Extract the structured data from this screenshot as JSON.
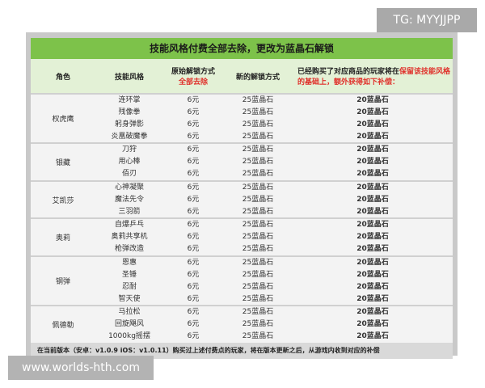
{
  "watermark_top": "TG: MYYJJPP",
  "watermark_bottom": "www.worlds-hth.com",
  "table": {
    "title": "技能风格付费全部去除，更改为蓝晶石解锁",
    "headers": {
      "role": "角色",
      "skill": "技能风格",
      "orig": "原始解锁方式",
      "orig_note": "全部去除",
      "new": "新的解锁方式",
      "comp_a": "已经购买了对应商品的玩家将在",
      "comp_b": "保留该技能风格的基础上，额外获得如下补偿："
    },
    "groups": [
      {
        "role": "权虎鹰",
        "skills": [
          "连环掌",
          "残像拳",
          "躬身弹影",
          "炎凰破魔拳"
        ]
      },
      {
        "role": "银藏",
        "skills": [
          "刀狩",
          "用心棒",
          "佰刃"
        ]
      },
      {
        "role": "艾凯莎",
        "skills": [
          "心神凝聚",
          "魔法先令",
          "三羽箭"
        ]
      },
      {
        "role": "奥莉",
        "skills": [
          "自爆乒乓",
          "奥莉共享机",
          "枪弹改造"
        ]
      },
      {
        "role": "钢弹",
        "skills": [
          "恩惠",
          "圣锤",
          "忍耐",
          "智天使"
        ]
      },
      {
        "role": "佩德勒",
        "skills": [
          "马拉松",
          "回旋飓风",
          "1000kg摇摆"
        ]
      }
    ],
    "orig_price": "6元",
    "new_price": "25蓝晶石",
    "compensation": "20蓝晶石",
    "footer": "在当前版本（安卓：v1.0.9 iOS：v1.0.11）购买过上述付费点的玩家，将在版本更新之后，从游戏内收到对应的补偿"
  }
}
